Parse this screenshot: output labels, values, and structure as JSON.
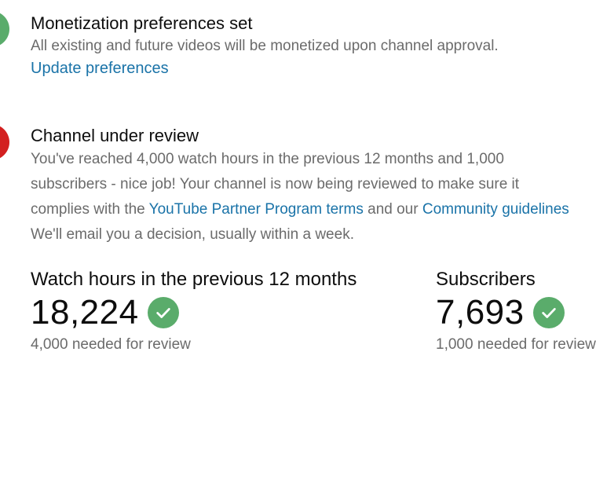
{
  "colors": {
    "success": "#5aac6b",
    "error": "#d32020",
    "link": "#1a73a8",
    "muted_text": "#6b6b6b"
  },
  "monetization": {
    "status_icon": "green-status-dot",
    "title": "Monetization preferences set",
    "description": "All existing and future videos will be monetized upon channel approval.",
    "update_link": "Update preferences"
  },
  "review": {
    "status_icon": "red-status-dot",
    "title": "Channel under review",
    "line1": "You've reached 4,000 watch hours in the previous 12 months and 1,000",
    "line2": "subscribers - nice job! Your channel is now being reviewed to make sure it",
    "line3_prefix": "complies with the ",
    "partner_terms_link": "YouTube Partner Program terms",
    "line3_middle": " and our ",
    "community_link": "Community guidelines",
    "line4": "We'll email you a decision, usually within a week."
  },
  "stats": {
    "watch_hours": {
      "label": "Watch hours in the previous 12 months",
      "value": "18,224",
      "icon": "check-circle-icon",
      "note": "4,000 needed for review"
    },
    "subscribers": {
      "label": "Subscribers",
      "value": "7,693",
      "icon": "check-circle-icon",
      "note": "1,000 needed for review"
    }
  }
}
